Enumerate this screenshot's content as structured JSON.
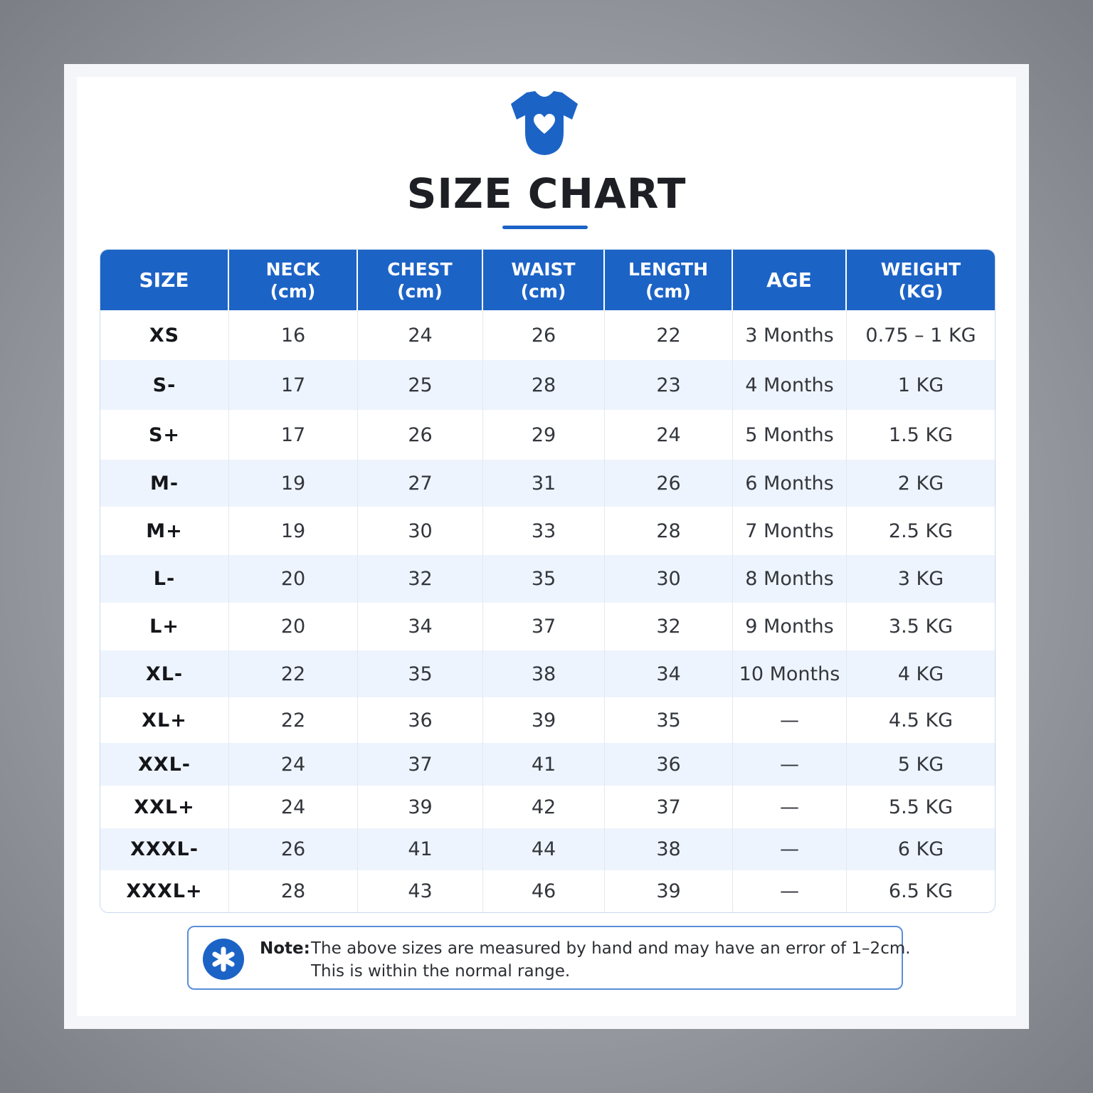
{
  "header": {
    "icon": "onesie-heart-icon",
    "title": "SIZE CHART",
    "accent_color": "#1c63c6"
  },
  "table": {
    "columns": [
      {
        "key": "size",
        "lines": [
          "SIZE"
        ]
      },
      {
        "key": "neck",
        "lines": [
          "NECK",
          "(cm)"
        ]
      },
      {
        "key": "chest",
        "lines": [
          "CHEST",
          "(cm)"
        ]
      },
      {
        "key": "waist",
        "lines": [
          "WAIST",
          "(cm)"
        ]
      },
      {
        "key": "length",
        "lines": [
          "LENGTH",
          "(cm)"
        ]
      },
      {
        "key": "age",
        "lines": [
          "AGE"
        ]
      },
      {
        "key": "weight",
        "lines": [
          "WEIGHT",
          "(KG)"
        ]
      }
    ],
    "rows": [
      {
        "size": "XS",
        "neck": "16",
        "chest": "24",
        "waist": "26",
        "length": "22",
        "age": "3 Months",
        "weight": "0.75 – 1 KG"
      },
      {
        "size": "S-",
        "neck": "17",
        "chest": "25",
        "waist": "28",
        "length": "23",
        "age": "4 Months",
        "weight": "1 KG"
      },
      {
        "size": "S+",
        "neck": "17",
        "chest": "26",
        "waist": "29",
        "length": "24",
        "age": "5 Months",
        "weight": "1.5 KG"
      },
      {
        "size": "M-",
        "neck": "19",
        "chest": "27",
        "waist": "31",
        "length": "26",
        "age": "6 Months",
        "weight": "2 KG"
      },
      {
        "size": "M+",
        "neck": "19",
        "chest": "30",
        "waist": "33",
        "length": "28",
        "age": "7 Months",
        "weight": "2.5 KG"
      },
      {
        "size": "L-",
        "neck": "20",
        "chest": "32",
        "waist": "35",
        "length": "30",
        "age": "8 Months",
        "weight": "3 KG"
      },
      {
        "size": "L+",
        "neck": "20",
        "chest": "34",
        "waist": "37",
        "length": "32",
        "age": "9 Months",
        "weight": "3.5 KG"
      },
      {
        "size": "XL-",
        "neck": "22",
        "chest": "35",
        "waist": "38",
        "length": "34",
        "age": "10 Months",
        "weight": "4 KG"
      },
      {
        "size": "XL+",
        "neck": "22",
        "chest": "36",
        "waist": "39",
        "length": "35",
        "age": "—",
        "weight": "4.5 KG"
      },
      {
        "size": "XXL-",
        "neck": "24",
        "chest": "37",
        "waist": "41",
        "length": "36",
        "age": "—",
        "weight": "5 KG"
      },
      {
        "size": "XXL+",
        "neck": "24",
        "chest": "39",
        "waist": "42",
        "length": "37",
        "age": "—",
        "weight": "5.5 KG"
      },
      {
        "size": "XXXL-",
        "neck": "26",
        "chest": "41",
        "waist": "44",
        "length": "38",
        "age": "—",
        "weight": "6 KG"
      },
      {
        "size": "XXXL+",
        "neck": "28",
        "chest": "43",
        "waist": "46",
        "length": "39",
        "age": "—",
        "weight": "6.5 KG"
      }
    ]
  },
  "note": {
    "icon": "asterisk-badge-icon",
    "label": "Note:",
    "line1": "The above sizes are measured by hand and may have an error of 1–2cm.",
    "line2": "This is within the normal range."
  }
}
